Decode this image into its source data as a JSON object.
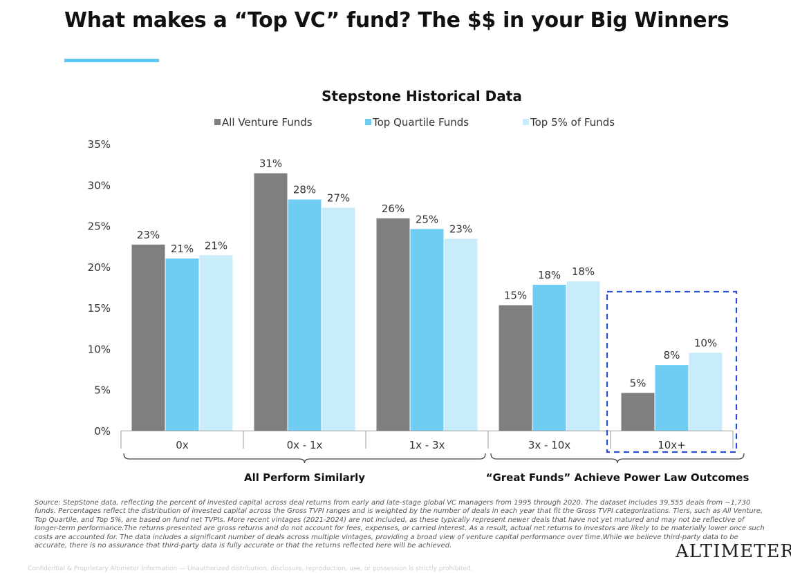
{
  "title": "What makes a “Top VC” fund? The $$ in your Big Winners",
  "colors": {
    "accent_rule": "#5bc8ee",
    "highlight_box": "#2a4fd6"
  },
  "chart_data": {
    "type": "bar",
    "title": "Stepstone Historical Data",
    "categories": [
      "0x",
      "0x - 1x",
      "1x - 3x",
      "3x - 10x",
      "10x+"
    ],
    "series": [
      {
        "name": "All Venture Funds",
        "color": "#7f7f7f",
        "values": [
          22.7,
          31.4,
          25.9,
          15.3,
          4.6
        ],
        "labels": [
          "23%",
          "31%",
          "26%",
          "15%",
          "5%"
        ]
      },
      {
        "name": "Top Quartile Funds",
        "color": "#6fcdf4",
        "values": [
          21.0,
          28.2,
          24.6,
          17.8,
          8.0
        ],
        "labels": [
          "21%",
          "28%",
          "25%",
          "18%",
          "8%"
        ]
      },
      {
        "name": "Top 5% of Funds",
        "color": "#c9ecfb",
        "values": [
          21.4,
          27.2,
          23.4,
          18.2,
          9.5
        ],
        "labels": [
          "21%",
          "27%",
          "23%",
          "18%",
          "10%"
        ]
      }
    ],
    "y_ticks": [
      "0%",
      "5%",
      "10%",
      "15%",
      "20%",
      "25%",
      "30%",
      "35%"
    ],
    "ylim": [
      0,
      35
    ],
    "legend_position": "top-center",
    "grid": false,
    "brackets": [
      {
        "label": "All Perform Similarly",
        "from_category": 0,
        "to_category": 2
      },
      {
        "label": "“Great Funds” Achieve Power Law Outcomes",
        "from_category": 3,
        "to_category": 4
      }
    ],
    "highlighted_category": 4
  },
  "source_note": "Source: StepStone data, reflecting the percent of invested capital across deal returns from early and late-stage global VC managers from 1995 through 2020. The dataset includes 39,555 deals from ~1,730 funds. Percentages reflect the distribution of invested capital across the Gross TVPI ranges and is weighted by the number of deals in each year that fit the Gross TVPI categorizations. Tiers, such as All Venture, Top Quartile, and Top 5%, are based on fund net TVPIs. More recent vintages (2021-2024) are not included, as these typically represent newer deals that have not yet matured and may not be reflective of longer-term performance.The returns presented are gross returns and do not account for fees, expenses, or carried interest. As a result, actual net returns to investors are likely to be materially lower once such costs are accounted for. The data includes a significant number of deals across multiple vintages, providing a broad view of venture capital performance over time.While we believe third-party data to be accurate, there is no assurance that third-party data is fully accurate or that the returns reflected here will be achieved.",
  "logo": "ALTIMETER",
  "confidential": "Confidential & Proprietary Altimeter Information — Unauthorized distribution, disclosure, reproduction, use, or possession is strictly prohibited."
}
